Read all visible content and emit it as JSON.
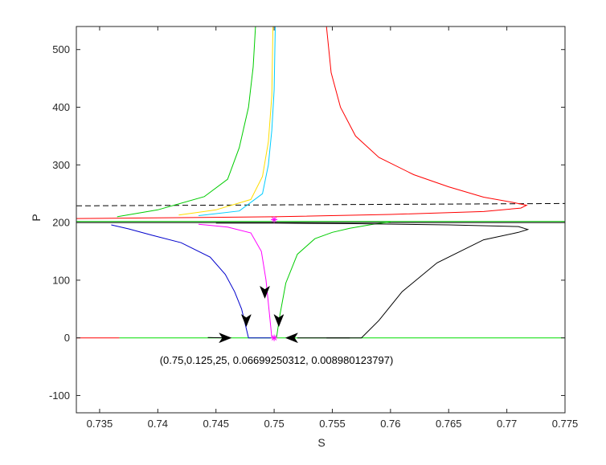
{
  "chart_data": {
    "type": "line",
    "title": "",
    "xlabel": "S",
    "ylabel": "P",
    "xlim": [
      0.733,
      0.775
    ],
    "ylim": [
      -130,
      540
    ],
    "grid": false,
    "legend": "none",
    "x_ticks": [
      {
        "value": 0.735,
        "label": "0.735"
      },
      {
        "value": 0.74,
        "label": "0.74"
      },
      {
        "value": 0.745,
        "label": "0.745"
      },
      {
        "value": 0.75,
        "label": "0.75"
      },
      {
        "value": 0.755,
        "label": "0.755"
      },
      {
        "value": 0.76,
        "label": "0.76"
      },
      {
        "value": 0.765,
        "label": "0.765"
      },
      {
        "value": 0.77,
        "label": "0.77"
      },
      {
        "value": 0.775,
        "label": "0.775"
      }
    ],
    "y_ticks": [
      {
        "value": -100,
        "label": "-100"
      },
      {
        "value": 0,
        "label": "0"
      },
      {
        "value": 100,
        "label": "100"
      },
      {
        "value": 200,
        "label": "200"
      },
      {
        "value": 300,
        "label": "300"
      },
      {
        "value": 400,
        "label": "400"
      },
      {
        "value": 500,
        "label": "500"
      }
    ],
    "annotation": {
      "text": "(0.75,0.125,25, 0.06699250312, 0.008980123797)",
      "x": 0.7502,
      "y": -45
    },
    "series": [
      {
        "color": "#ff0000",
        "style": "solid",
        "points": [
          [
            0.733,
            0
          ],
          [
            0.7367,
            0
          ]
        ]
      },
      {
        "color": "#00dd00",
        "style": "solid",
        "points": [
          [
            0.7367,
            0
          ],
          [
            0.775,
            0
          ]
        ]
      },
      {
        "color": "#000000",
        "style": "solid",
        "points": [
          [
            0.7443,
            0.5
          ],
          [
            0.746,
            0
          ]
        ]
      },
      {
        "color": "#000000",
        "style": "solid",
        "points": [
          [
            0.7565,
            0
          ],
          [
            0.752,
            0
          ]
        ]
      },
      {
        "color": "#000000",
        "style": "dashed",
        "points": [
          [
            0.733,
            229
          ],
          [
            0.775,
            233
          ]
        ]
      },
      {
        "color": "#000000",
        "style": "solid",
        "points": [
          [
            0.733,
            200
          ],
          [
            0.775,
            200
          ]
        ]
      },
      {
        "color": "#00cc00",
        "style": "solid",
        "points": [
          [
            0.733,
            202
          ],
          [
            0.775,
            202
          ]
        ]
      },
      {
        "color": "#ff0000",
        "style": "solid",
        "points": [
          [
            0.733,
            207
          ],
          [
            0.74,
            208
          ],
          [
            0.75,
            210
          ],
          [
            0.76,
            214
          ],
          [
            0.768,
            219
          ],
          [
            0.7712,
            225
          ],
          [
            0.7717,
            230
          ],
          [
            0.7705,
            235
          ],
          [
            0.768,
            244
          ],
          [
            0.765,
            262
          ],
          [
            0.762,
            283
          ],
          [
            0.759,
            313
          ],
          [
            0.757,
            350
          ],
          [
            0.7557,
            400
          ],
          [
            0.7549,
            460
          ],
          [
            0.7545,
            540
          ]
        ]
      },
      {
        "color": "#00cc00",
        "style": "solid",
        "points": [
          [
            0.7365,
            210
          ],
          [
            0.74,
            222
          ],
          [
            0.744,
            245
          ],
          [
            0.746,
            275
          ],
          [
            0.747,
            330
          ],
          [
            0.7478,
            400
          ],
          [
            0.7482,
            470
          ],
          [
            0.7484,
            540
          ]
        ]
      },
      {
        "color": "#ffdd00",
        "style": "solid",
        "points": [
          [
            0.7418,
            213
          ],
          [
            0.745,
            222
          ],
          [
            0.748,
            240
          ],
          [
            0.749,
            280
          ],
          [
            0.7495,
            340
          ],
          [
            0.7498,
            420
          ],
          [
            0.7499,
            540
          ]
        ]
      },
      {
        "color": "#00ccff",
        "style": "solid",
        "points": [
          [
            0.7435,
            212
          ],
          [
            0.747,
            220
          ],
          [
            0.749,
            250
          ],
          [
            0.7495,
            300
          ],
          [
            0.7498,
            360
          ],
          [
            0.75,
            430
          ],
          [
            0.7501,
            540
          ]
        ]
      },
      {
        "color": "#0000cc",
        "style": "solid",
        "points": [
          [
            0.736,
            196
          ],
          [
            0.7375,
            189
          ],
          [
            0.7395,
            178
          ],
          [
            0.742,
            165
          ],
          [
            0.7445,
            140
          ],
          [
            0.7458,
            110
          ],
          [
            0.7466,
            80
          ],
          [
            0.7472,
            50
          ],
          [
            0.7475,
            25
          ],
          [
            0.7478,
            0
          ],
          [
            0.7497,
            0
          ]
        ]
      },
      {
        "color": "#ff00ff",
        "style": "solid",
        "points": [
          [
            0.7435,
            197
          ],
          [
            0.746,
            192
          ],
          [
            0.748,
            182
          ],
          [
            0.7489,
            150
          ],
          [
            0.7493,
            100
          ],
          [
            0.7495,
            60
          ],
          [
            0.7497,
            20
          ],
          [
            0.7498,
            0
          ],
          [
            0.75,
            0
          ]
        ]
      },
      {
        "color": "#00cc00",
        "style": "solid",
        "points": [
          [
            0.7502,
            0
          ],
          [
            0.7505,
            40
          ],
          [
            0.751,
            95
          ],
          [
            0.752,
            145
          ],
          [
            0.7535,
            172
          ],
          [
            0.755,
            183
          ],
          [
            0.7565,
            190
          ],
          [
            0.7585,
            197
          ],
          [
            0.76,
            201
          ]
        ]
      },
      {
        "color": "#000000",
        "style": "solid",
        "points": [
          [
            0.7545,
            0
          ],
          [
            0.7575,
            0
          ],
          [
            0.759,
            30
          ],
          [
            0.761,
            80
          ],
          [
            0.764,
            130
          ],
          [
            0.768,
            170
          ],
          [
            0.771,
            183
          ],
          [
            0.7718,
            188
          ],
          [
            0.771,
            193
          ],
          [
            0.765,
            196
          ],
          [
            0.757,
            198
          ],
          [
            0.75,
            199
          ],
          [
            0.745,
            199
          ]
        ]
      }
    ],
    "arrows": [
      {
        "x": 0.7459,
        "y": 0,
        "dir": "right"
      },
      {
        "x": 0.7514,
        "y": 0,
        "dir": "left"
      },
      {
        "x": 0.7476,
        "y": 28,
        "dir": "down"
      },
      {
        "x": 0.7492,
        "y": 77,
        "dir": "down"
      },
      {
        "x": 0.7504,
        "y": 28,
        "dir": "down"
      }
    ],
    "markers": [
      {
        "x": 0.75,
        "y": 0,
        "color": "#ff00ff",
        "symbol": "*"
      },
      {
        "x": 0.75,
        "y": 205,
        "color": "#ff00ff",
        "symbol": "*"
      }
    ]
  }
}
